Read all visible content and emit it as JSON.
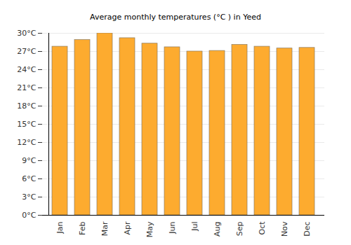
{
  "chart_data": {
    "type": "bar",
    "title": "Average monthly temperatures (°C ) in Yeed",
    "categories": [
      "Jan",
      "Feb",
      "Mar",
      "Apr",
      "May",
      "Jun",
      "Jul",
      "Aug",
      "Sep",
      "Oct",
      "Nov",
      "Dec"
    ],
    "values": [
      27.8,
      28.9,
      30.0,
      29.2,
      28.3,
      27.7,
      27.0,
      27.1,
      28.1,
      27.8,
      27.5,
      27.6
    ],
    "color": "#fdab2f",
    "ylim": [
      0,
      30
    ],
    "yticks": [
      {
        "value": 0,
        "label": "0°C"
      },
      {
        "value": 3,
        "label": "3°C"
      },
      {
        "value": 6,
        "label": "6°C"
      },
      {
        "value": 9,
        "label": "9°C"
      },
      {
        "value": 12,
        "label": "12°C"
      },
      {
        "value": 15,
        "label": "15°C"
      },
      {
        "value": 18,
        "label": "18°C"
      },
      {
        "value": 21,
        "label": "21°C"
      },
      {
        "value": 24,
        "label": "24°C"
      },
      {
        "value": 27,
        "label": "27°C"
      },
      {
        "value": 30,
        "label": "30°C"
      }
    ],
    "grid": true
  }
}
